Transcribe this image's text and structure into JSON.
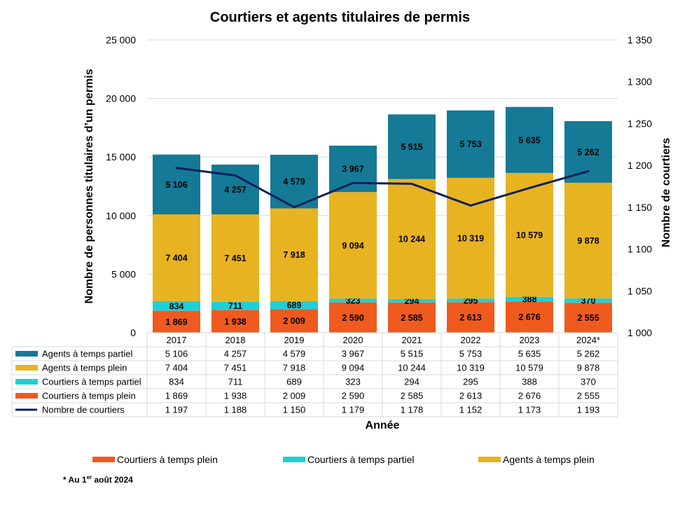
{
  "chart_data": {
    "type": "bar",
    "stacked": true,
    "title": "Courtiers et agents titulaires de permis",
    "xlabel": "Année",
    "ylabel": "Nombre de personnes titulaires d’un permis",
    "y2label": "Nombre de courtiers",
    "ylim": [
      0,
      25000
    ],
    "y2lim": [
      1000,
      1350
    ],
    "yticks": [
      "0",
      "5 000",
      "10 000",
      "15 000",
      "20 000",
      "25 000"
    ],
    "y2ticks": [
      "1 000",
      "1 050",
      "1 100",
      "1 150",
      "1 200",
      "1 250",
      "1 300",
      "1 350"
    ],
    "grid": true,
    "categories": [
      "2017",
      "2018",
      "2019",
      "2020",
      "2021",
      "2022",
      "2023",
      "2024*"
    ],
    "series": [
      {
        "name": "Agents à temps partiel",
        "type": "bar",
        "color": "#157A96",
        "values": [
          5106,
          4257,
          4579,
          3967,
          5515,
          5753,
          5635,
          5262
        ],
        "labels": [
          "5 106",
          "4 257",
          "4 579",
          "3 967",
          "5 515",
          "5 753",
          "5 635",
          "5 262"
        ]
      },
      {
        "name": "Agents à temps plein",
        "type": "bar",
        "color": "#E8B321",
        "values": [
          7404,
          7451,
          7918,
          9094,
          10244,
          10319,
          10579,
          9878
        ],
        "labels": [
          "7 404",
          "7 451",
          "7 918",
          "9 094",
          "10 244",
          "10 319",
          "10 579",
          "9 878"
        ]
      },
      {
        "name": "Courtiers à temps partiel",
        "type": "bar",
        "color": "#1FCFD6",
        "values": [
          834,
          711,
          689,
          323,
          294,
          295,
          388,
          370
        ],
        "labels": [
          "834",
          "711",
          "689",
          "323",
          "294",
          "295",
          "388",
          "370"
        ]
      },
      {
        "name": "Courtiers à temps plein",
        "type": "bar",
        "color": "#F05A1E",
        "values": [
          1869,
          1938,
          2009,
          2590,
          2585,
          2613,
          2676,
          2555
        ],
        "labels": [
          "1 869",
          "1 938",
          "2 009",
          "2 590",
          "2 585",
          "2 613",
          "2 676",
          "2 555"
        ]
      },
      {
        "name": "Nombre de courtiers",
        "type": "line",
        "axis": "right",
        "color": "#0F1F5C",
        "values": [
          1197,
          1188,
          1150,
          1179,
          1178,
          1152,
          1173,
          1193
        ],
        "labels": [
          "1 197",
          "1 188",
          "1 150",
          "1 179",
          "1 178",
          "1 152",
          "1 173",
          "1 193"
        ]
      }
    ],
    "bottom_legend": [
      "Courtiers à temps plein",
      "Courtiers à temps partiel",
      "Agents à temps plein"
    ],
    "footnote": {
      "prefix": "* Au 1",
      "superscript": "er",
      "suffix": " août 2024"
    }
  }
}
